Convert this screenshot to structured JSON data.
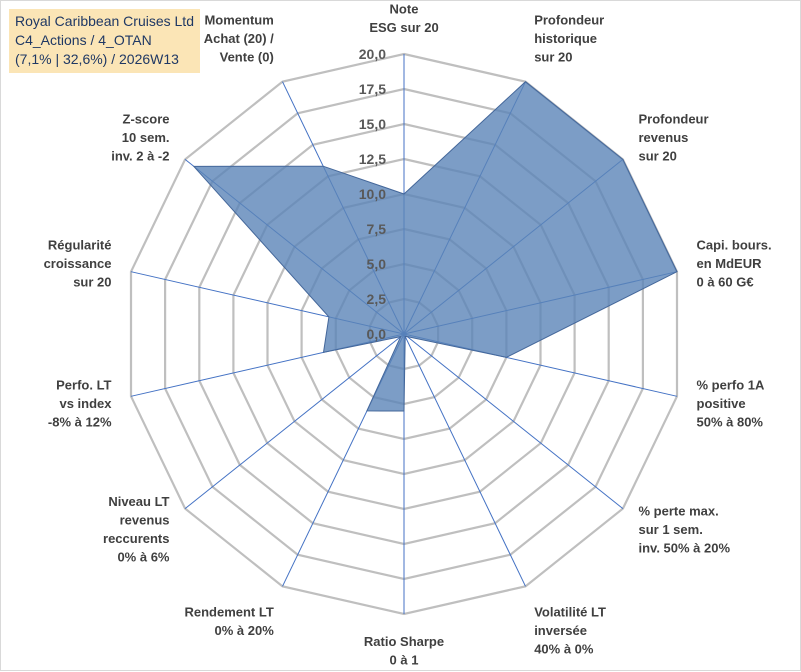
{
  "title_box": {
    "line1": "Royal Caribbean Cruises Ltd",
    "line2": "C4_Actions / 4_OTAN",
    "line3": "(7,1% | 32,6%) / 2026W13",
    "background": "#fbe5b6",
    "text_color": "#1f3864"
  },
  "chart_data": {
    "type": "radar",
    "rmax": 20,
    "ticks": [
      "0,0",
      "2,5",
      "5,0",
      "7,5",
      "10,0",
      "12,5",
      "15,0",
      "17,5",
      "20,0"
    ],
    "tick_values": [
      0,
      2.5,
      5,
      7.5,
      10,
      12.5,
      15,
      17.5,
      20
    ],
    "grid_levels": [
      2.5,
      5,
      7.5,
      10,
      12.5,
      15,
      17.5,
      20
    ],
    "axes": [
      [
        "Note",
        "ESG sur 20"
      ],
      [
        "Profondeur",
        "historique",
        "sur 20"
      ],
      [
        "Profondeur",
        "revenus",
        "sur 20"
      ],
      [
        "Capi. bours.",
        "en MdEUR",
        "0 à 60 G€"
      ],
      [
        "% perfo 1A",
        "positive",
        "50% à 80%"
      ],
      [
        "% perte max.",
        "sur 1 sem.",
        "inv. 50% à 20%"
      ],
      [
        "Volatilité LT",
        "inversée",
        "40% à 0%"
      ],
      [
        "Ratio Sharpe",
        "0 à 1"
      ],
      [
        "Rendement LT",
        "0% à 20%"
      ],
      [
        "Niveau LT",
        "revenus",
        "reccurents",
        "0% à 6%"
      ],
      [
        "Perfo. LT",
        "vs index",
        "-8% à 12%"
      ],
      [
        "Régularité",
        "croissance",
        "sur 20"
      ],
      [
        "Z-score",
        "10 sem.",
        "inv. 2 à -2"
      ],
      [
        "Momentum",
        "Achat (20) /",
        "Vente (0)"
      ]
    ],
    "series": [
      {
        "name": "Royal Caribbean Cruises Ltd",
        "values": [
          10,
          20,
          20,
          20,
          7.5,
          0.3,
          0.2,
          5.5,
          6.1,
          0.3,
          5.9,
          5.5,
          19.2,
          13.3
        ],
        "fill": "#5b84b8",
        "fill_opacity": 0.8,
        "stroke": "#44679a"
      }
    ],
    "grid_color": "#bfbfbf",
    "spoke_color": "#4472c4"
  }
}
